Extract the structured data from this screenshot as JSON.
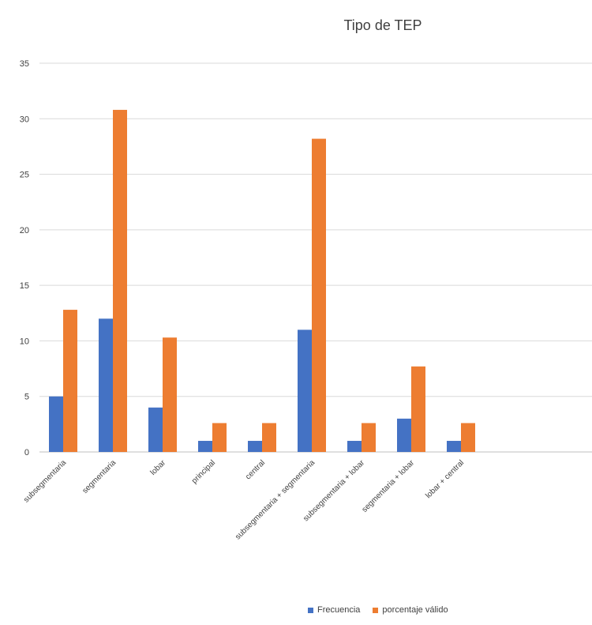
{
  "chart_data": {
    "type": "bar",
    "title": "Tipo de TEP",
    "xlabel": "",
    "ylabel": "",
    "ylim": [
      0,
      35
    ],
    "yticks": [
      0,
      5,
      10,
      15,
      20,
      25,
      30,
      35
    ],
    "grid": true,
    "legend_position": "bottom",
    "categories": [
      "subsegmentaria",
      "segmentaria",
      "lobar",
      "principal",
      "central",
      "subsegmentaria + segmentaria",
      "subsegmentaria + lobar",
      "segmentaria + lobar",
      "lobar + central"
    ],
    "series": [
      {
        "name": "Frecuencia",
        "color": "#4472c4",
        "values": [
          5,
          12,
          4,
          1,
          1,
          11,
          1,
          3,
          1
        ]
      },
      {
        "name": "porcentaje válido",
        "color": "#ed7d31",
        "values": [
          12.8,
          30.8,
          10.3,
          2.6,
          2.6,
          28.2,
          2.6,
          7.7,
          2.6
        ]
      }
    ]
  }
}
